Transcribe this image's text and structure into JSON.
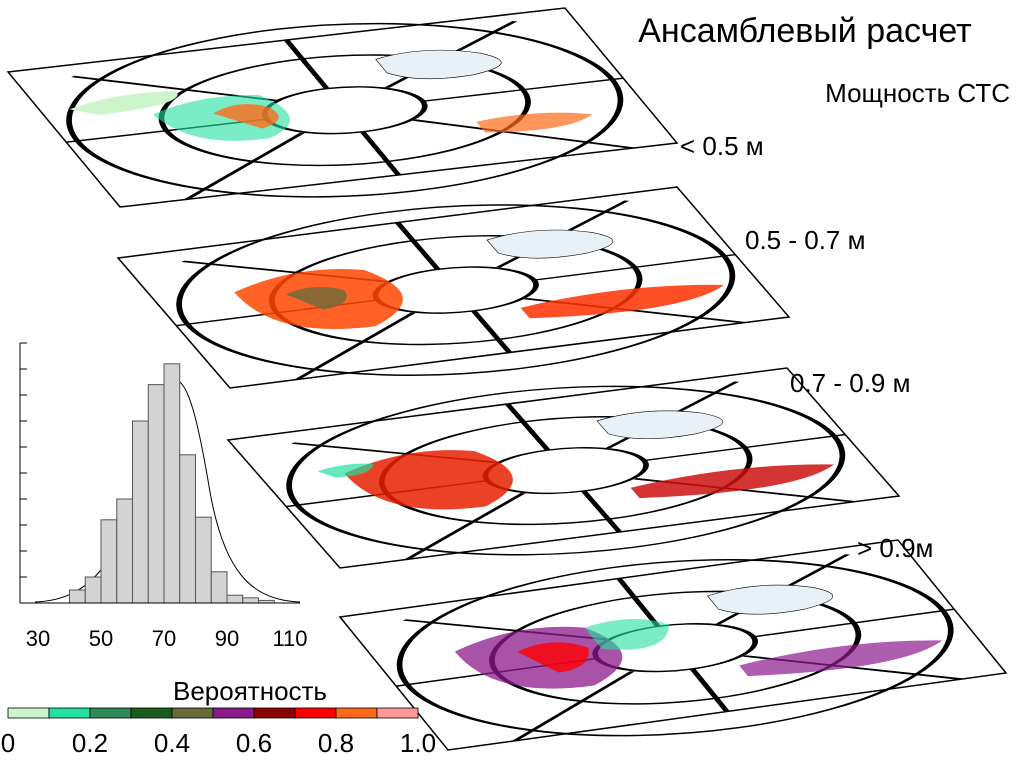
{
  "header": {
    "title": "Ансамблевый расчет",
    "subtitle": "Мощность СТС"
  },
  "layers": [
    {
      "label": "< 0.5 м"
    },
    {
      "label": "0.5 - 0.7 м"
    },
    {
      "label": "0.7 - 0.9 м"
    },
    {
      "label": "> 0.9м"
    }
  ],
  "chart_data": {
    "type": "histogram",
    "bins": [
      40,
      45,
      50,
      55,
      60,
      65,
      70,
      75,
      80,
      85,
      90,
      95,
      100,
      105
    ],
    "values": [
      0.5,
      1,
      3.2,
      4,
      7,
      8.4,
      9.2,
      5.7,
      3.3,
      1.2,
      0.3,
      0.2,
      0.1
    ],
    "color": "#d3d3d3",
    "xlim": [
      30,
      110
    ],
    "xticks": [
      30,
      50,
      70,
      90,
      110
    ],
    "ylim": [
      0,
      10
    ],
    "yticks": [
      0,
      1,
      2,
      3,
      4,
      5,
      6,
      7,
      8,
      9,
      10
    ]
  },
  "colorbar": {
    "title": "Вероятность",
    "lim": [
      0,
      1
    ],
    "colors": [
      "#ccf5cc",
      "#22e0a0",
      "#2e8b57",
      "#1a5c1a",
      "#6b6b3a",
      "#8b1a8b",
      "#8b0000",
      "#ff0000",
      "#ff6a1a",
      "#ff9999"
    ],
    "ticks": [
      0,
      0.2,
      0.4,
      0.6,
      0.8,
      {
        "value": 1.0,
        "label": "1.0"
      }
    ]
  }
}
